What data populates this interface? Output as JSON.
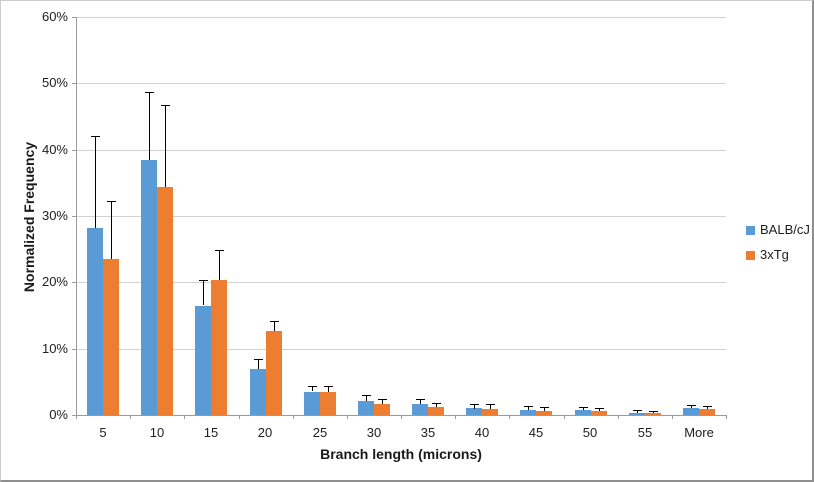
{
  "chart_data": {
    "type": "bar",
    "title": "",
    "xlabel": "Branch length (microns)",
    "ylabel": "Normalized Frequency",
    "categories": [
      "5",
      "10",
      "15",
      "20",
      "25",
      "30",
      "35",
      "40",
      "45",
      "50",
      "55",
      "More"
    ],
    "series": [
      {
        "name": "BALB/cJ",
        "color": "#5B9BD5",
        "values": [
          28.2,
          38.5,
          16.5,
          7.0,
          3.5,
          2.1,
          1.6,
          1.0,
          0.7,
          0.7,
          0.3,
          1.0
        ],
        "error_plus": [
          13.8,
          10.2,
          3.8,
          1.5,
          0.8,
          0.9,
          0.8,
          0.7,
          0.6,
          0.5,
          0.4,
          0.5
        ]
      },
      {
        "name": "3xTg",
        "color": "#ED7D31",
        "values": [
          23.5,
          34.4,
          20.4,
          12.6,
          3.5,
          1.7,
          1.2,
          0.9,
          0.6,
          0.6,
          0.3,
          0.9
        ],
        "error_plus": [
          8.7,
          12.4,
          4.5,
          1.5,
          0.9,
          0.7,
          0.6,
          0.7,
          0.6,
          0.4,
          0.3,
          0.45
        ]
      }
    ],
    "y_ticks": [
      "0%",
      "10%",
      "20%",
      "30%",
      "40%",
      "50%",
      "60%"
    ],
    "y_tick_values": [
      0,
      10,
      20,
      30,
      40,
      50,
      60
    ],
    "ylim": [
      0,
      60
    ],
    "grid": true,
    "error_bars": "plus_only",
    "legend_position": "right",
    "colors": {
      "grid": "#d2d2d2",
      "axis": "#9b9b9b",
      "error": "#000000"
    }
  }
}
